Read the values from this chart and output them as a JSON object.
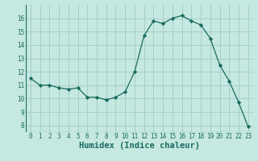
{
  "x": [
    0,
    1,
    2,
    3,
    4,
    5,
    6,
    7,
    8,
    9,
    10,
    11,
    12,
    13,
    14,
    15,
    16,
    17,
    18,
    19,
    20,
    21,
    22,
    23
  ],
  "y": [
    11.5,
    11.0,
    11.0,
    10.8,
    10.7,
    10.8,
    10.1,
    10.1,
    9.9,
    10.1,
    10.5,
    12.0,
    14.7,
    15.8,
    15.6,
    16.0,
    16.2,
    15.8,
    15.5,
    14.5,
    12.5,
    11.3,
    9.7,
    7.9
  ],
  "line_color": "#1a6b60",
  "marker": "D",
  "marker_size": 2.2,
  "bg_color": "#c5e8e0",
  "grid_color": "#a8cfc8",
  "xlabel": "Humidex (Indice chaleur)",
  "xlim": [
    -0.5,
    23.5
  ],
  "ylim": [
    7.5,
    17.0
  ],
  "yticks": [
    8,
    9,
    10,
    11,
    12,
    13,
    14,
    15,
    16
  ],
  "xticks": [
    0,
    1,
    2,
    3,
    4,
    5,
    6,
    7,
    8,
    9,
    10,
    11,
    12,
    13,
    14,
    15,
    16,
    17,
    18,
    19,
    20,
    21,
    22,
    23
  ],
  "tick_fontsize": 5.5,
  "label_fontsize": 7.5
}
